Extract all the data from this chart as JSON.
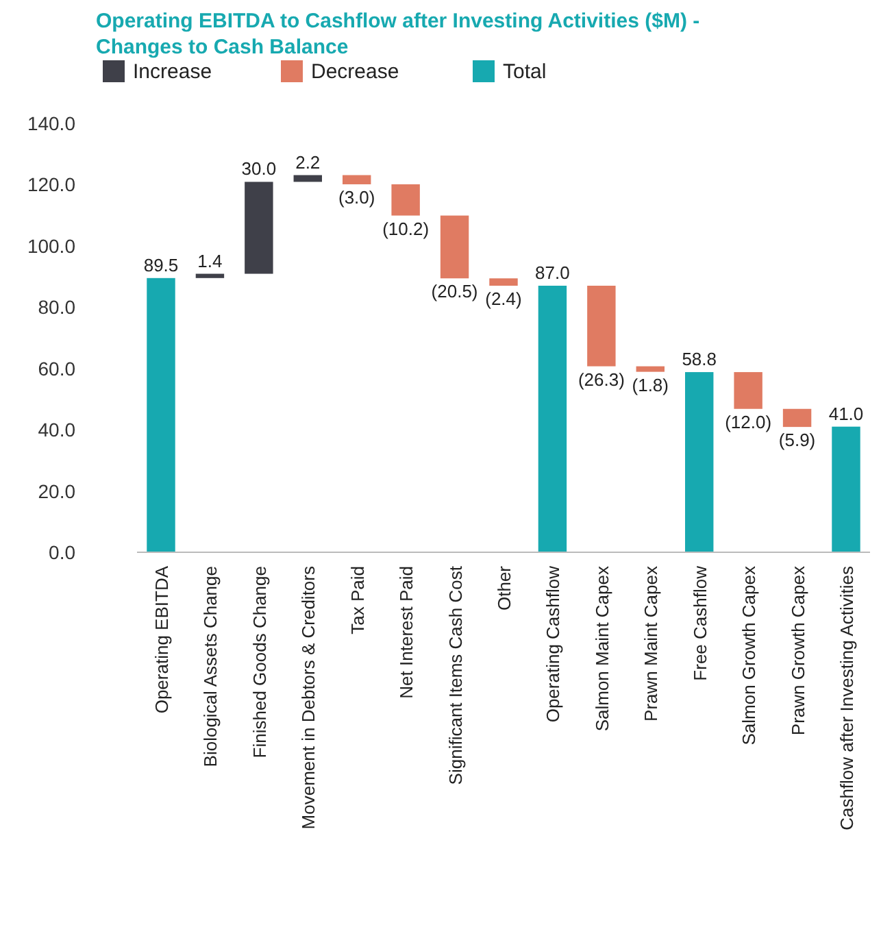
{
  "chart_data": {
    "type": "bar",
    "title": "Operating EBITDA to Cashflow after Investing Activities ($M) - Changes to Cash Balance",
    "categories": [
      "Operating EBITDA",
      "Biological Assets Change",
      "Finished Goods Change",
      "Movement in Debtors & Creditors",
      "Tax Paid",
      "Net Interest Paid",
      "Significant Items Cash Cost",
      "Other",
      "Operating Cashflow",
      "Salmon Maint Capex",
      "Prawn Maint Capex",
      "Free Cashflow",
      "Salmon Growth Capex",
      "Prawn Growth Capex",
      "Cashflow after Investing Activities"
    ],
    "series": [
      {
        "name": "Increase",
        "color": "#3f4049",
        "base": [
          null,
          89.5,
          90.9,
          120.9,
          null,
          null,
          null,
          null,
          null,
          null,
          null,
          null,
          null,
          null,
          null
        ],
        "values": [
          null,
          1.4,
          30.0,
          2.2,
          null,
          null,
          null,
          null,
          null,
          null,
          null,
          null,
          null,
          null,
          null
        ],
        "value_labels": [
          null,
          "1.4",
          "30.0",
          "2.2",
          null,
          null,
          null,
          null,
          null,
          null,
          null,
          null,
          null,
          null,
          null
        ]
      },
      {
        "name": "Decrease",
        "color": "#e07b62",
        "base": [
          null,
          null,
          null,
          null,
          123.1,
          120.1,
          109.9,
          89.4,
          null,
          87.0,
          60.7,
          null,
          58.8,
          46.8,
          null
        ],
        "values": [
          null,
          null,
          null,
          null,
          -3.0,
          -10.2,
          -20.5,
          -2.4,
          null,
          -26.3,
          -1.8,
          null,
          -12.0,
          -5.9,
          null
        ],
        "value_labels": [
          null,
          null,
          null,
          null,
          "(3.0)",
          "(10.2)",
          "(20.5)",
          "(2.4)",
          null,
          "(26.3)",
          "(1.8)",
          null,
          "(12.0)",
          "(5.9)",
          null
        ]
      },
      {
        "name": "Total",
        "color": "#17a9b0",
        "base": [
          0,
          null,
          null,
          null,
          null,
          null,
          null,
          null,
          0,
          null,
          null,
          0,
          null,
          null,
          0
        ],
        "values": [
          89.5,
          null,
          null,
          null,
          null,
          null,
          null,
          null,
          87.0,
          null,
          null,
          58.8,
          null,
          null,
          41.0
        ],
        "value_labels": [
          "89.5",
          null,
          null,
          null,
          null,
          null,
          null,
          null,
          "87.0",
          null,
          null,
          "58.8",
          null,
          null,
          "41.0"
        ]
      }
    ],
    "ylim": [
      0,
      140
    ],
    "yticks": [
      {
        "value": 0,
        "label": "0.0"
      },
      {
        "value": 20,
        "label": "20.0"
      },
      {
        "value": 40,
        "label": "40.0"
      },
      {
        "value": 60,
        "label": "60.0"
      },
      {
        "value": 80,
        "label": "80.0"
      },
      {
        "value": 100,
        "label": "100.0"
      },
      {
        "value": 120,
        "label": "120.0"
      },
      {
        "value": 140,
        "label": "140.0"
      }
    ],
    "grid": false,
    "legend": "top left"
  }
}
